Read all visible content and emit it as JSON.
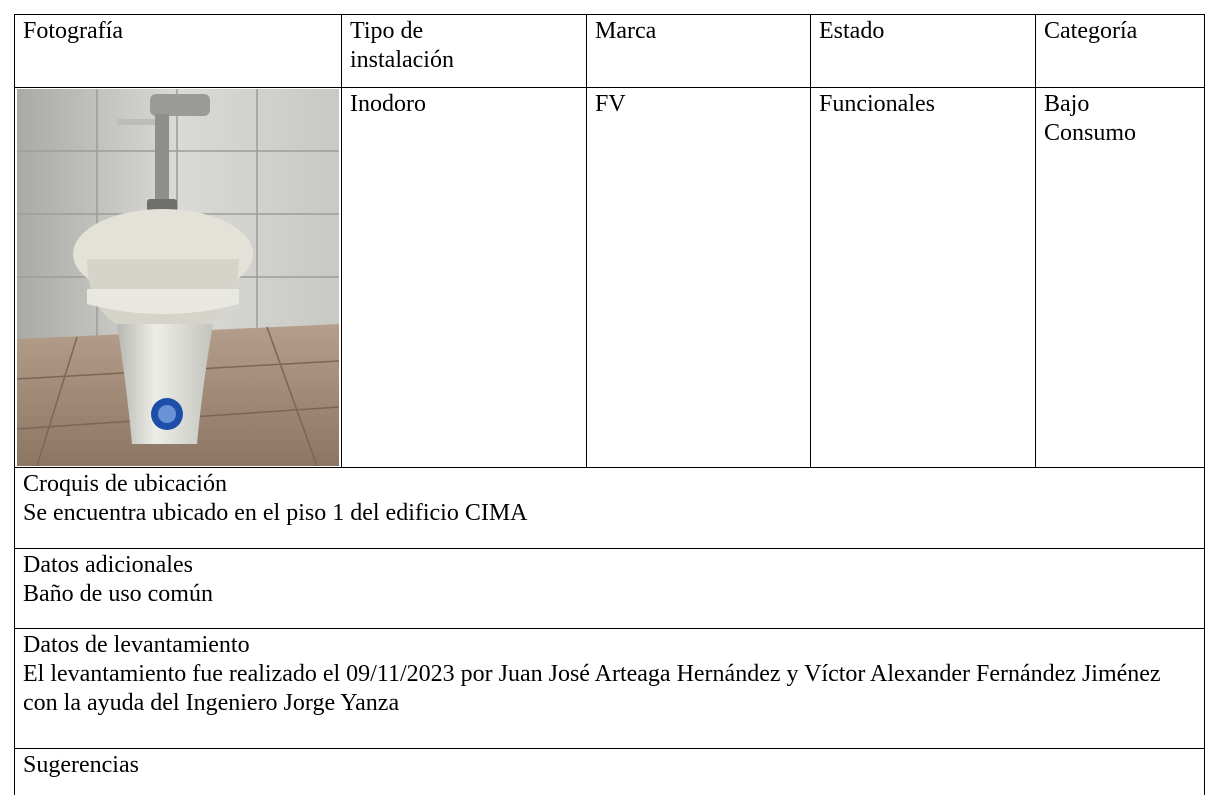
{
  "table": {
    "header": [
      "Fotografía",
      "Tipo de instalación",
      "Marca",
      "Estado",
      "Categoría"
    ],
    "row": [
      "Inodoro",
      "FV",
      "Funcionales",
      "Bajo Consumo"
    ]
  },
  "sections": [
    {
      "title": "Croquis de ubicación",
      "text": "Se encuentra ubicado en el piso 1 del edificio CIMA"
    },
    {
      "title": "Datos adicionales",
      "text": "Baño de uso común"
    },
    {
      "title": "Datos de levantamiento",
      "text": "El levantamiento fue realizado el 09/11/2023 por Juan José Arteaga Hernández y Víctor Alexander Fernández Jiménez con la ayuda del Ingeniero Jorge Yanza"
    },
    {
      "title": "Sugerencias"
    }
  ]
}
